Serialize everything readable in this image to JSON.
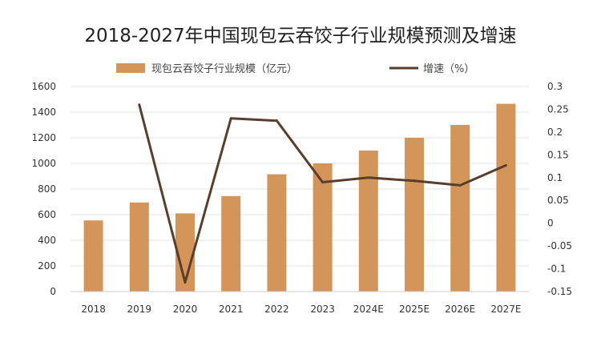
{
  "chart_data": {
    "type": "bar+line",
    "title": "2018-2027年中国现包云吞饺子行业规模预测及增速",
    "categories": [
      "2018",
      "2019",
      "2020",
      "2021",
      "2022",
      "2023",
      "2024E",
      "2025E",
      "2026E",
      "2027E"
    ],
    "series": [
      {
        "name": "现包云吞饺子行业规模（亿元）",
        "type": "bar",
        "axis": "left",
        "color": "#D4955B",
        "values": [
          555,
          695,
          610,
          745,
          915,
          1000,
          1100,
          1200,
          1300,
          1465
        ]
      },
      {
        "name": "增速（%）",
        "type": "line",
        "axis": "right",
        "color": "#5A3E2B",
        "values": [
          null,
          0.26,
          -0.13,
          0.23,
          0.225,
          0.09,
          0.1,
          0.093,
          0.083,
          0.127
        ]
      }
    ],
    "y_left": {
      "min": 0,
      "max": 1600,
      "ticks": [
        "0",
        "200",
        "400",
        "600",
        "800",
        "1000",
        "1200",
        "1400",
        "1600"
      ]
    },
    "y_right": {
      "min": -0.15,
      "max": 0.3,
      "ticks": [
        "-0.15",
        "-0.1",
        "-0.05",
        "0",
        "0.05",
        "0.1",
        "0.15",
        "0.2",
        "0.25",
        "0.3"
      ]
    },
    "grid": true,
    "legend_position": "top"
  }
}
